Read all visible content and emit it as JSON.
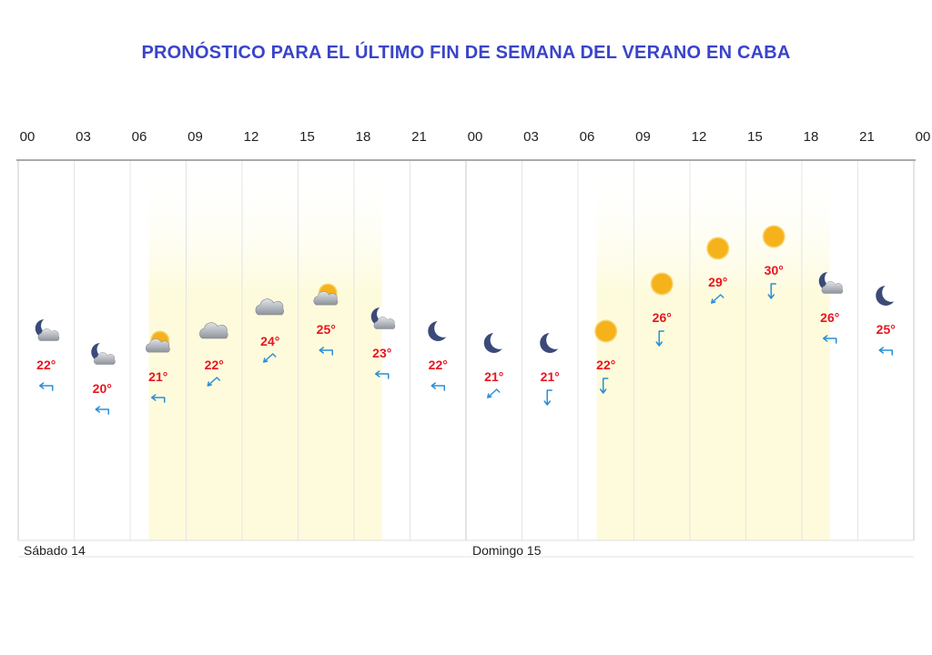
{
  "title": "PRONÓSTICO PARA EL ÚLTIMO FIN DE SEMANA DEL VERANO EN CABA",
  "colors": {
    "title": "#3a44c9",
    "temperature": "#e8141f",
    "wind": "#2a8fd8",
    "sun": "#f5b21a",
    "daylight": "#fdfbdc"
  },
  "hour_labels": [
    "00",
    "03",
    "06",
    "09",
    "12",
    "15",
    "18",
    "21",
    "00",
    "03",
    "06",
    "09",
    "12",
    "15",
    "18",
    "21",
    "00"
  ],
  "days": [
    {
      "label": "Sábado 14"
    },
    {
      "label": "Domingo 15"
    }
  ],
  "chart_data": {
    "type": "line",
    "xlabel": "",
    "ylabel": "",
    "units": "°",
    "daylight_hours": [
      [
        7,
        19.5
      ],
      [
        31,
        43.5
      ]
    ],
    "points": [
      {
        "hour": 1.5,
        "temp": 22,
        "label": "22°",
        "icon": "moon-cloud-icon"
      },
      {
        "hour": 4.5,
        "temp": 20,
        "label": "20°",
        "icon": "moon-cloud-icon"
      },
      {
        "hour": 7.5,
        "temp": 21,
        "label": "21°",
        "icon": "sun-cloud-icon"
      },
      {
        "hour": 10.5,
        "temp": 22,
        "label": "22°",
        "icon": "cloud-icon"
      },
      {
        "hour": 13.5,
        "temp": 24,
        "label": "24°",
        "icon": "cloud-icon"
      },
      {
        "hour": 16.5,
        "temp": 25,
        "label": "25°",
        "icon": "sun-cloud-icon"
      },
      {
        "hour": 19.5,
        "temp": 23,
        "label": "23°",
        "icon": "moon-cloud-icon"
      },
      {
        "hour": 22.5,
        "temp": 22,
        "label": "22°",
        "icon": "moon-icon"
      },
      {
        "hour": 25.5,
        "temp": 21,
        "label": "21°",
        "icon": "moon-icon"
      },
      {
        "hour": 28.5,
        "temp": 21,
        "label": "21°",
        "icon": "moon-icon"
      },
      {
        "hour": 31.5,
        "temp": 22,
        "label": "22°",
        "icon": "sun-icon"
      },
      {
        "hour": 34.5,
        "temp": 26,
        "label": "26°",
        "icon": "sun-icon"
      },
      {
        "hour": 37.5,
        "temp": 29,
        "label": "29°",
        "icon": "sun-icon"
      },
      {
        "hour": 40.5,
        "temp": 30,
        "label": "30°",
        "icon": "sun-icon"
      },
      {
        "hour": 43.5,
        "temp": 26,
        "label": "26°",
        "icon": "moon-cloud-icon"
      },
      {
        "hour": 46.5,
        "temp": 25,
        "label": "25°",
        "icon": "moon-icon"
      }
    ]
  }
}
